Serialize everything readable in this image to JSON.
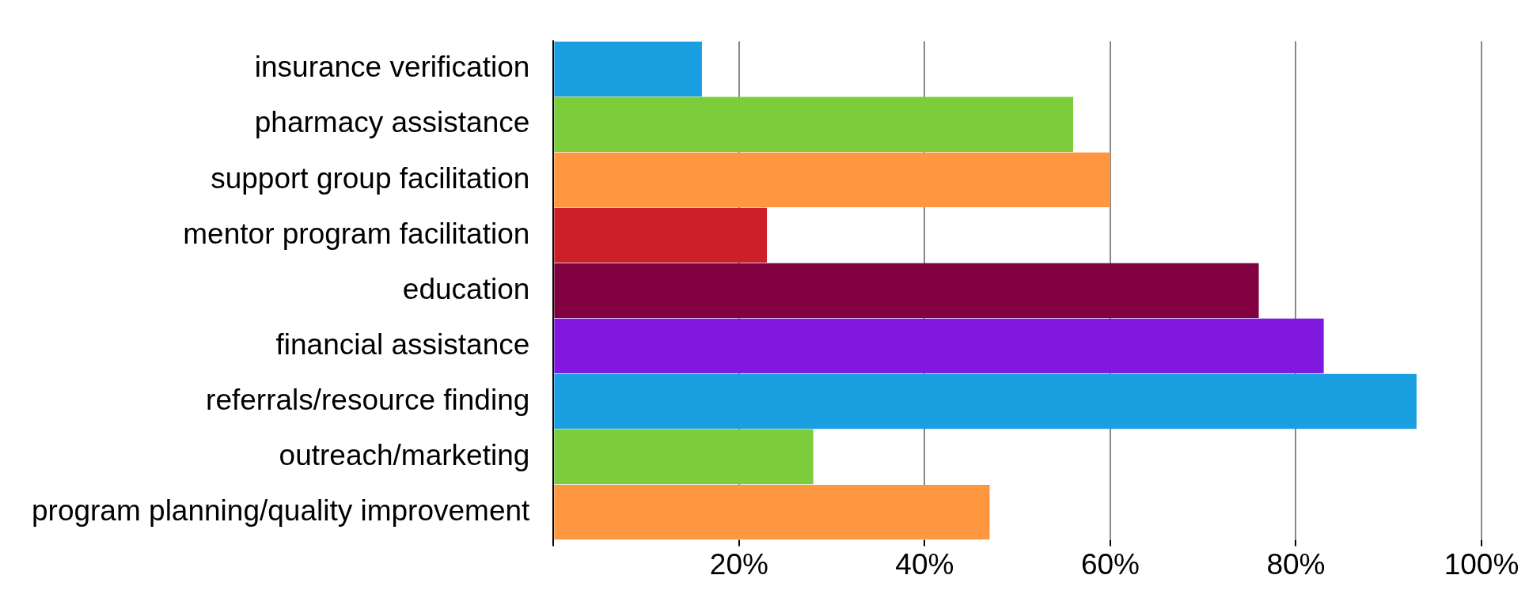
{
  "chart_data": {
    "type": "bar",
    "orientation": "horizontal",
    "categories": [
      "insurance verification",
      "pharmacy assistance",
      "support group facilitation",
      "mentor program facilitation",
      "education",
      "financial assistance",
      "referrals/resource finding",
      "outreach/marketing",
      "program planning/quality improvement"
    ],
    "values": [
      16,
      56,
      60,
      23,
      76,
      83,
      93,
      28,
      47
    ],
    "colors": [
      "#1a9fe0",
      "#7ccc3c",
      "#ff9640",
      "#cc2028",
      "#800040",
      "#8018e0",
      "#1a9fe0",
      "#7ccc3c",
      "#ff9640"
    ],
    "xlim": [
      0,
      100
    ],
    "xticks": [
      {
        "value": 0,
        "label": null
      },
      {
        "value": 20,
        "label": "20%"
      },
      {
        "value": 40,
        "label": "40%"
      },
      {
        "value": 60,
        "label": "60%"
      },
      {
        "value": 80,
        "label": "80%"
      },
      {
        "value": 100,
        "label": "100%"
      }
    ],
    "grid": "x"
  }
}
